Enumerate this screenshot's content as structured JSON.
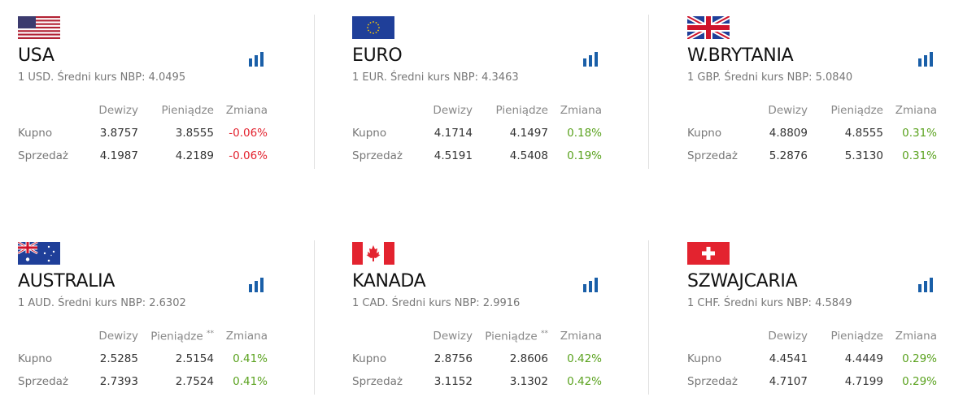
{
  "currencies": [
    {
      "name": "USA",
      "desc": "1 USD. Średni kurs NBP: 4.0495",
      "flag": "us-flag-icon",
      "headers": {
        "dewizy": "Dewizy",
        "pieniadze": "Pieniądze",
        "pieniadze_note": "",
        "zmiana": "Zmiana"
      },
      "rows": [
        {
          "label": "Kupno",
          "dewizy": "3.8757",
          "pieniadze": "3.8555",
          "zmiana": "-0.06%"
        },
        {
          "label": "Sprzedaż",
          "dewizy": "4.1987",
          "pieniadze": "4.2189",
          "zmiana": "-0.06%"
        }
      ]
    },
    {
      "name": "EURO",
      "desc": "1 EUR. Średni kurs NBP: 4.3463",
      "flag": "eu-flag-icon",
      "headers": {
        "dewizy": "Dewizy",
        "pieniadze": "Pieniądze",
        "pieniadze_note": "",
        "zmiana": "Zmiana"
      },
      "rows": [
        {
          "label": "Kupno",
          "dewizy": "4.1714",
          "pieniadze": "4.1497",
          "zmiana": "0.18%"
        },
        {
          "label": "Sprzedaż",
          "dewizy": "4.5191",
          "pieniadze": "4.5408",
          "zmiana": "0.19%"
        }
      ]
    },
    {
      "name": "W.BRYTANIA",
      "desc": "1 GBP. Średni kurs NBP: 5.0840",
      "flag": "uk-flag-icon",
      "headers": {
        "dewizy": "Dewizy",
        "pieniadze": "Pieniądze",
        "pieniadze_note": "",
        "zmiana": "Zmiana"
      },
      "rows": [
        {
          "label": "Kupno",
          "dewizy": "4.8809",
          "pieniadze": "4.8555",
          "zmiana": "0.31%"
        },
        {
          "label": "Sprzedaż",
          "dewizy": "5.2876",
          "pieniadze": "5.3130",
          "zmiana": "0.31%"
        }
      ]
    },
    {
      "name": "AUSTRALIA",
      "desc": "1 AUD. Średni kurs NBP: 2.6302",
      "flag": "australia-flag-icon",
      "headers": {
        "dewizy": "Dewizy",
        "pieniadze": "Pieniądze",
        "pieniadze_note": "**",
        "zmiana": "Zmiana"
      },
      "rows": [
        {
          "label": "Kupno",
          "dewizy": "2.5285",
          "pieniadze": "2.5154",
          "zmiana": "0.41%"
        },
        {
          "label": "Sprzedaż",
          "dewizy": "2.7393",
          "pieniadze": "2.7524",
          "zmiana": "0.41%"
        }
      ]
    },
    {
      "name": "KANADA",
      "desc": "1 CAD. Średni kurs NBP: 2.9916",
      "flag": "canada-flag-icon",
      "headers": {
        "dewizy": "Dewizy",
        "pieniadze": "Pieniądze",
        "pieniadze_note": "**",
        "zmiana": "Zmiana"
      },
      "rows": [
        {
          "label": "Kupno",
          "dewizy": "2.8756",
          "pieniadze": "2.8606",
          "zmiana": "0.42%"
        },
        {
          "label": "Sprzedaż",
          "dewizy": "3.1152",
          "pieniadze": "3.1302",
          "zmiana": "0.42%"
        }
      ]
    },
    {
      "name": "SZWAJCARIA",
      "desc": "1 CHF. Średni kurs NBP: 4.5849",
      "flag": "switzerland-flag-icon",
      "headers": {
        "dewizy": "Dewizy",
        "pieniadze": "Pieniądze",
        "pieniadze_note": "",
        "zmiana": "Zmiana"
      },
      "rows": [
        {
          "label": "Kupno",
          "dewizy": "4.4541",
          "pieniadze": "4.4449",
          "zmiana": "0.29%"
        },
        {
          "label": "Sprzedaż",
          "dewizy": "4.7107",
          "pieniadze": "4.7199",
          "zmiana": "0.29%"
        }
      ]
    }
  ],
  "colors": {
    "negative": "#e3232f",
    "positive": "#5aa21e",
    "chart_icon": "#1a5fa8"
  }
}
